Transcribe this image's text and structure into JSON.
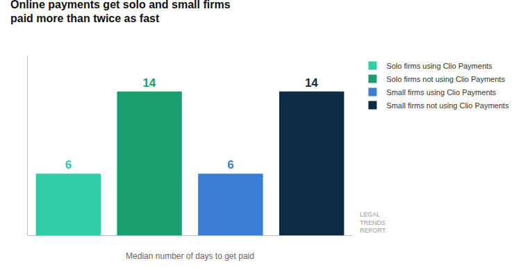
{
  "chart_data": {
    "type": "bar",
    "title": "Online payments get solo and small firms\npaid more than twice as fast",
    "xlabel": "Median number of days to get paid",
    "categories": [
      "Solo firms using Clio Payments",
      "Solo firms not using Clio Payments",
      "Small firms using Clio Payments",
      "Small firms not using Clio Payments"
    ],
    "values": [
      6,
      14,
      6,
      14
    ],
    "colors": [
      "#2ECDA7",
      "#1A9E6E",
      "#3B7FD4",
      "#0D2B45"
    ],
    "ylim": [
      0,
      17.5
    ],
    "yticks": [],
    "grid": false,
    "legend": "right",
    "data_labels": true,
    "tick_labels": false,
    "annotations": [
      "LEGAL\nTRENDS\nREPORT"
    ]
  }
}
